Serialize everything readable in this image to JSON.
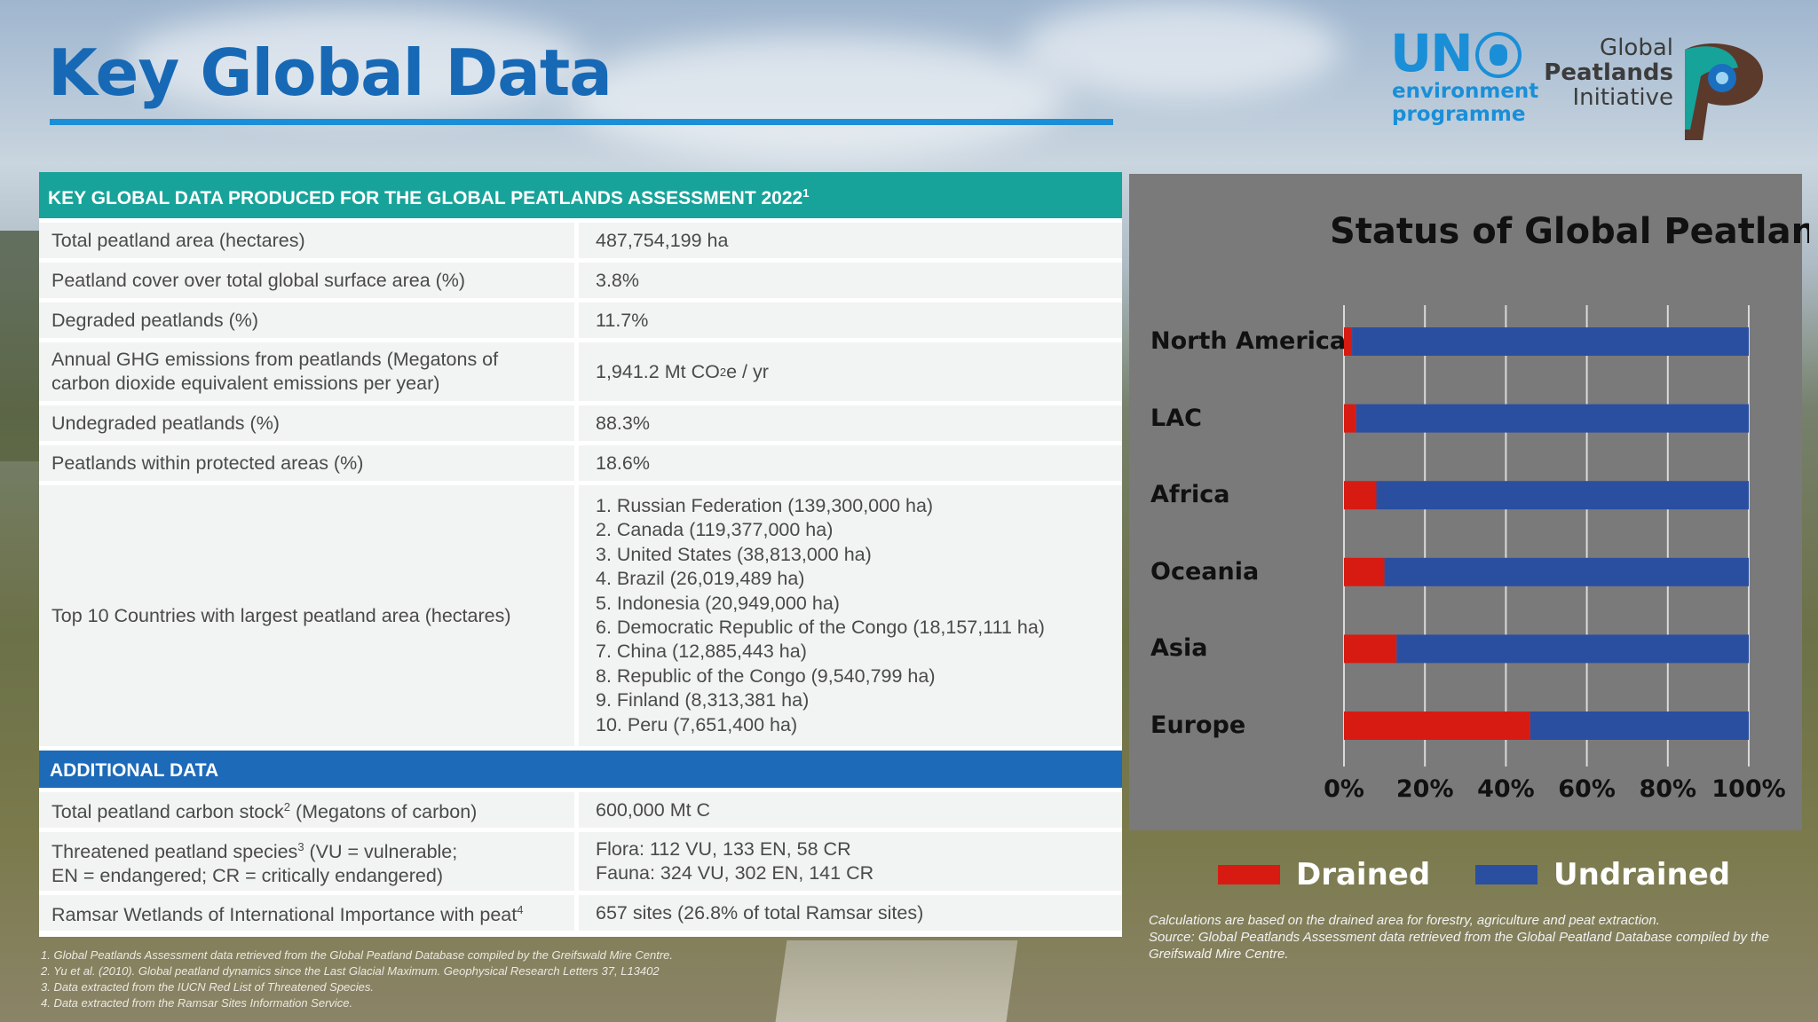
{
  "page": {
    "title": "Key Global Data"
  },
  "logos": {
    "un_big": "UN",
    "un_line1": "environment",
    "un_line2": "programme",
    "gpi_line1": "Global",
    "gpi_line2": "Peatlands",
    "gpi_line3": "Initiative"
  },
  "table": {
    "header": "KEY GLOBAL DATA PRODUCED FOR THE GLOBAL PEATLANDS ASSESSMENT 2022",
    "header_sup": "1",
    "rows": [
      {
        "label": "Total peatland area (hectares)",
        "value": "487,754,199 ha"
      },
      {
        "label": "Peatland cover over total global surface area (%)",
        "value": "3.8%"
      },
      {
        "label": "Degraded peatlands (%)",
        "value": "11.7%"
      },
      {
        "label": "Annual GHG emissions from peatlands (Megatons of carbon dioxide equivalent emissions per year)",
        "value_a": "1,941.2 Mt CO",
        "value_sub": "2",
        "value_b": "e / yr"
      },
      {
        "label": "Undegraded peatlands (%)",
        "value": "88.3%"
      },
      {
        "label": "Peatlands within protected areas (%)",
        "value": "18.6%"
      },
      {
        "label": "Top 10 Countries with largest peatland area (hectares)"
      }
    ],
    "top10": [
      "1. Russian Federation (139,300,000 ha)",
      "2. Canada (119,377,000 ha)",
      "3. United States (38,813,000 ha)",
      "4. Brazil (26,019,489 ha)",
      "5. Indonesia (20,949,000 ha)",
      "6. Democratic Republic of the Congo (18,157,111 ha)",
      "7. China (12,885,443 ha)",
      "8. Republic of the Congo (9,540,799 ha)",
      "9. Finland (8,313,381 ha)",
      "10. Peru (7,651,400 ha)"
    ],
    "additional_header": "ADDITIONAL DATA",
    "additional": [
      {
        "label_a": "Total peatland carbon stock",
        "sup": "2",
        "label_b": " (Megatons of carbon)",
        "value": "600,000 Mt C"
      },
      {
        "label_a": "Threatened peatland species",
        "sup": "3",
        "label_b": " (VU = vulnerable;",
        "label_c": "EN = endangered; CR = critically endangered)",
        "value_a": "Flora: 112 VU, 133 EN, 58 CR",
        "value_b": "Fauna: 324 VU, 302 EN, 141 CR"
      },
      {
        "label_a": "Ramsar Wetlands of International Importance with peat",
        "sup": "4",
        "label_b": "",
        "value": "657 sites (26.8% of total Ramsar sites)"
      }
    ],
    "footnotes": [
      "1. Global Peatlands Assessment data retrieved from the Global Peatland Database compiled by the Greifswald Mire Centre.",
      "2. Yu et al. (2010). Global peatland dynamics since the Last Glacial Maximum. Geophysical Research Letters 37, L13402",
      "3. Data extracted from the IUCN Red List of Threatened Species.",
      "4. Data extracted from the Ramsar Sites Information Service."
    ]
  },
  "chart_data": {
    "type": "bar",
    "orientation": "horizontal",
    "stacked": true,
    "title": "Status of Global Peatland (%)",
    "categories": [
      "North America",
      "LAC",
      "Africa",
      "Oceania",
      "Asia",
      "Europe"
    ],
    "series": [
      {
        "name": "Drained",
        "color": "#d81b12",
        "values": [
          2,
          3,
          8,
          10,
          13,
          46
        ]
      },
      {
        "name": "Undrained",
        "color": "#2a4fa1",
        "values": [
          98,
          97,
          92,
          90,
          87,
          54
        ]
      }
    ],
    "xlim": [
      0,
      100
    ],
    "xticks": [
      "0%",
      "20%",
      "40%",
      "60%",
      "80%",
      "100%"
    ],
    "grid": true,
    "legend": "bottom",
    "note_line1": "Calculations are based on the drained area for forestry, agriculture and peat extraction.",
    "note_line2": "Source: Global Peatlands Assessment data retrieved from the Global Peatland Database compiled by the Greifswald Mire Centre."
  }
}
